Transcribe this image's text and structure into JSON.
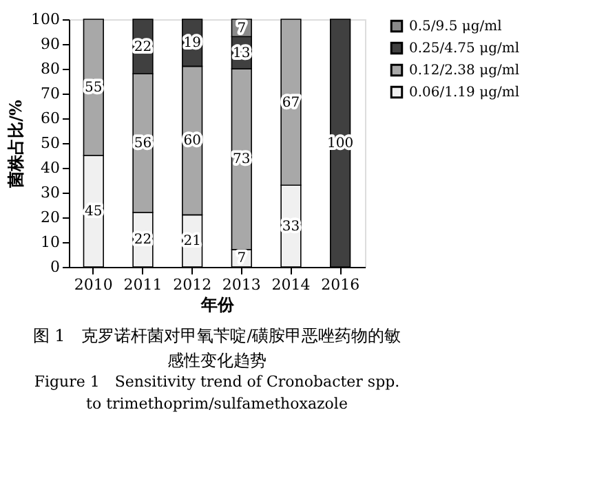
{
  "chart_data": {
    "type": "bar",
    "stacked": true,
    "title": "图 1　克罗诺杆菌对甲氧苄啶/磺胺甲恶唑药物的敏感性变化趋势",
    "subtitle": "Figure 1　Sensitivity trend of Cronobacter spp. to trimethoprim/sulfamethoxazole",
    "xlabel": "年份",
    "ylabel": "菌株占比/%",
    "categories": [
      "2010",
      "2011",
      "2012",
      "2013",
      "2014",
      "2016"
    ],
    "series": [
      {
        "name": "0.06/1.19 μg/ml",
        "color": "#f0f0f0",
        "values": [
          45,
          22,
          21,
          7,
          33,
          null
        ]
      },
      {
        "name": "0.12/2.38 μg/ml",
        "color": "#a8a8a8",
        "values": [
          55,
          56,
          60,
          73,
          67,
          null
        ]
      },
      {
        "name": "0.25/4.75 μg/ml",
        "color": "#404040",
        "values": [
          null,
          22,
          19,
          13,
          null,
          100
        ]
      },
      {
        "name": "0.5/9.5 μg/ml",
        "color": "#8a8a8a",
        "values": [
          null,
          null,
          null,
          7,
          null,
          null
        ]
      }
    ],
    "ylim": [
      0,
      100
    ],
    "yticks": [
      0,
      10,
      20,
      30,
      40,
      50,
      60,
      70,
      80,
      90,
      100
    ],
    "data_labels": true,
    "legend": "right",
    "grid": false
  }
}
